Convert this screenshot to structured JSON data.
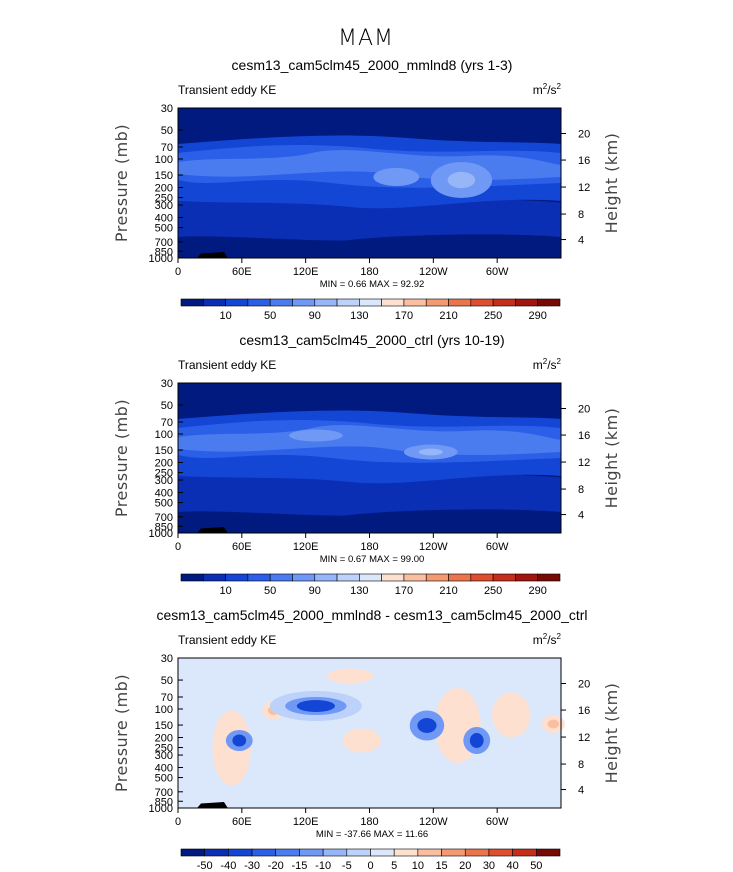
{
  "season": "MAM",
  "chart_data": [
    {
      "type": "heatmap",
      "title": "cesm13_cam5clm45_2000_mmlnd8 (yrs 1-3)",
      "subtitle_left": "Transient eddy KE",
      "units": "m^2/s^2",
      "ylabel": "Pressure (mb)",
      "ylabel_right": "Height (km)",
      "xticks": [
        "0",
        "60E",
        "120E",
        "180",
        "120W",
        "60W"
      ],
      "yticks": [
        "30",
        "50",
        "70",
        "100",
        "150",
        "200",
        "250",
        "300",
        "400",
        "500",
        "700",
        "850",
        "1000"
      ],
      "yticks_right": [
        "20",
        "16",
        "12",
        "8",
        "4"
      ],
      "stats": {
        "min_label": "MIN =",
        "min": "0.66",
        "max_label": "MAX =",
        "max": "92.92"
      },
      "colorbar": {
        "labels": [
          "10",
          "50",
          "90",
          "130",
          "170",
          "210",
          "250",
          "290"
        ],
        "colors": [
          "#001a80",
          "#0a2fb5",
          "#1446d6",
          "#2b5fe8",
          "#4a7cf0",
          "#6f99f5",
          "#97b6f8",
          "#bdd2fa",
          "#dbe8fc",
          "#fde0cf",
          "#f9bfa0",
          "#f49a72",
          "#ec744c",
          "#df4e2e",
          "#c62e1c",
          "#a0160f",
          "#780a06"
        ]
      }
    },
    {
      "type": "heatmap",
      "title": "cesm13_cam5clm45_2000_ctrl (yrs 10-19)",
      "subtitle_left": "Transient eddy KE",
      "units": "m^2/s^2",
      "ylabel": "Pressure (mb)",
      "ylabel_right": "Height (km)",
      "xticks": [
        "0",
        "60E",
        "120E",
        "180",
        "120W",
        "60W"
      ],
      "yticks": [
        "30",
        "50",
        "70",
        "100",
        "150",
        "200",
        "250",
        "300",
        "400",
        "500",
        "700",
        "850",
        "1000"
      ],
      "yticks_right": [
        "20",
        "16",
        "12",
        "8",
        "4"
      ],
      "stats": {
        "min_label": "MIN =",
        "min": "0.67",
        "max_label": "MAX =",
        "max": "99.00"
      },
      "colorbar": {
        "labels": [
          "10",
          "50",
          "90",
          "130",
          "170",
          "210",
          "250",
          "290"
        ],
        "colors": [
          "#001a80",
          "#0a2fb5",
          "#1446d6",
          "#2b5fe8",
          "#4a7cf0",
          "#6f99f5",
          "#97b6f8",
          "#bdd2fa",
          "#dbe8fc",
          "#fde0cf",
          "#f9bfa0",
          "#f49a72",
          "#ec744c",
          "#df4e2e",
          "#c62e1c",
          "#a0160f",
          "#780a06"
        ]
      }
    },
    {
      "type": "heatmap",
      "title": "cesm13_cam5clm45_2000_mmlnd8 - cesm13_cam5clm45_2000_ctrl",
      "subtitle_left": "Transient eddy KE",
      "units": "m^2/s^2",
      "ylabel": "Pressure (mb)",
      "ylabel_right": "Height (km)",
      "xticks": [
        "0",
        "60E",
        "120E",
        "180",
        "120W",
        "60W"
      ],
      "yticks": [
        "30",
        "50",
        "70",
        "100",
        "150",
        "200",
        "250",
        "300",
        "400",
        "500",
        "700",
        "850",
        "1000"
      ],
      "yticks_right": [
        "20",
        "16",
        "12",
        "8",
        "4"
      ],
      "stats": {
        "min_label": "MIN =",
        "min": "-37.66",
        "max_label": "MAX =",
        "max": "11.66"
      },
      "colorbar": {
        "labels": [
          "-50",
          "-40",
          "-30",
          "-20",
          "-15",
          "-10",
          "-5",
          "0",
          "5",
          "10",
          "15",
          "20",
          "30",
          "40",
          "50"
        ],
        "colors": [
          "#001a80",
          "#0a2fb5",
          "#1446d6",
          "#2b5fe8",
          "#4a7cf0",
          "#6f99f5",
          "#97b6f8",
          "#bdd2fa",
          "#dbe8fc",
          "#fde0cf",
          "#f9bfa0",
          "#f49a72",
          "#ec744c",
          "#df4e2e",
          "#c62e1c",
          "#780a06"
        ]
      }
    }
  ]
}
